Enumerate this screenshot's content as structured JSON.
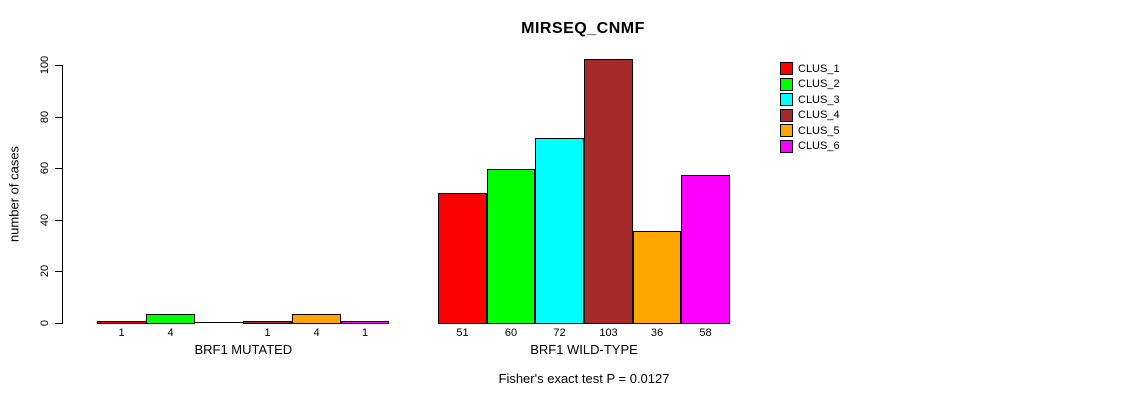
{
  "chart": {
    "title": "MIRSEQ_CNMF",
    "ylabel": "number of cases",
    "footer": "Fisher's exact test P = 0.0127"
  },
  "chart_data": {
    "type": "bar",
    "title": "MIRSEQ_CNMF",
    "ylabel": "number of cases",
    "xlabel": "",
    "ylim": [
      0,
      100
    ],
    "yticks": [
      0,
      20,
      40,
      60,
      80,
      100
    ],
    "grid": false,
    "legend_position": "right",
    "annotation": "Fisher's exact test P = 0.0127",
    "axis_color": "#000000",
    "background_color": "#ffffff",
    "series": [
      {
        "name": "CLUS_1",
        "color": "#FF0000"
      },
      {
        "name": "CLUS_2",
        "color": "#00FF00"
      },
      {
        "name": "CLUS_3",
        "color": "#00FFFF"
      },
      {
        "name": "CLUS_4",
        "color": "#A52A2A"
      },
      {
        "name": "CLUS_5",
        "color": "#FFA500"
      },
      {
        "name": "CLUS_6",
        "color": "#FF00FF"
      }
    ],
    "groups": [
      {
        "label": "BRF1 MUTATED",
        "values": [
          1,
          4,
          0,
          1,
          4,
          1
        ],
        "value_labels": [
          "1",
          "4",
          "",
          "1",
          "4",
          "1"
        ]
      },
      {
        "label": "BRF1 WILD-TYPE",
        "values": [
          51,
          60,
          72,
          103,
          36,
          58
        ],
        "value_labels": [
          "51",
          "60",
          "72",
          "103",
          "36",
          "58"
        ]
      }
    ]
  }
}
